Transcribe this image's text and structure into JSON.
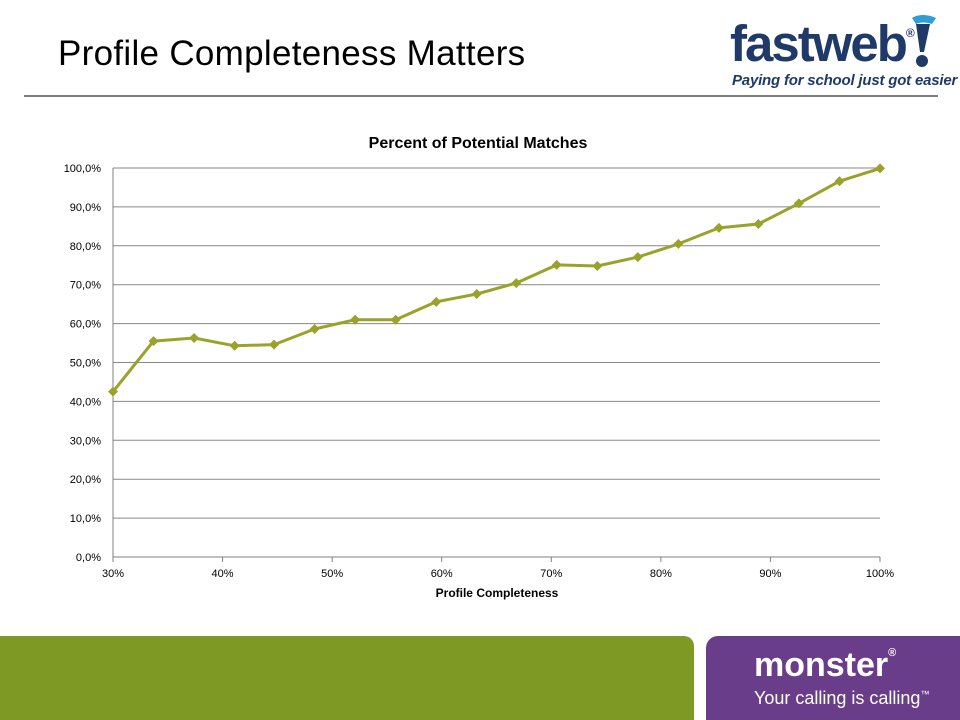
{
  "slide": {
    "title": "Profile Completeness Matters"
  },
  "logo": {
    "word": "fastweb",
    "registered": "®",
    "tagline": "Paying for school just got easier"
  },
  "footer": {
    "brand": "monster",
    "registered": "®",
    "tagline": "Your calling is calling",
    "trademark": "™"
  },
  "colors": {
    "series": "#9aa22a",
    "footer_green": "#7e9a24",
    "footer_purple": "#6a3d8a",
    "logo_navy": "#1f3a68"
  },
  "chart_data": {
    "type": "line",
    "title": "Percent of Potential Matches",
    "xlabel": "Profile Completeness",
    "ylabel": "",
    "x_ticks": [
      "30%",
      "40%",
      "50%",
      "60%",
      "70%",
      "80%",
      "90%",
      "100%"
    ],
    "y_ticks": [
      "0,0%",
      "10,0%",
      "20,0%",
      "30,0%",
      "40,0%",
      "50,0%",
      "60,0%",
      "70,0%",
      "80,0%",
      "90,0%",
      "100,0%"
    ],
    "xlim": [
      30,
      100
    ],
    "ylim": [
      0,
      100
    ],
    "grid": "horizontal",
    "legend": "none",
    "series": [
      {
        "x": [
          30,
          33.7,
          37.4,
          41.1,
          44.7,
          48.4,
          52.1,
          55.8,
          59.5,
          63.2,
          66.8,
          70.5,
          74.2,
          77.9,
          81.6,
          85.3,
          88.9,
          92.6,
          96.3,
          100
        ],
        "values": [
          42.5,
          55.5,
          56.3,
          54.3,
          54.6,
          58.6,
          61.0,
          61.0,
          65.6,
          67.6,
          70.4,
          75.1,
          74.8,
          77.1,
          80.5,
          84.6,
          85.6,
          90.9,
          96.6,
          99.9
        ]
      }
    ]
  }
}
